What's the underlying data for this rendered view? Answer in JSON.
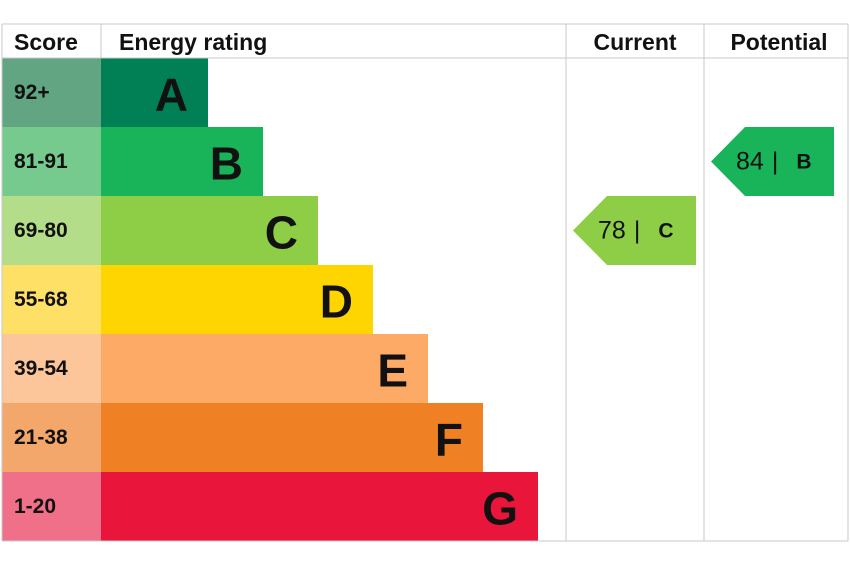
{
  "header": {
    "score": "Score",
    "energy_rating": "Energy rating",
    "current": "Current",
    "potential": "Potential"
  },
  "bands": [
    {
      "score": "92+",
      "rating": "A",
      "color": "#008054",
      "score_color": "#62a583"
    },
    {
      "score": "81-91",
      "rating": "B",
      "color": "#19b459",
      "score_color": "#76ca8e"
    },
    {
      "score": "69-80",
      "rating": "C",
      "color": "#8dce46",
      "score_color": "#b3dd88"
    },
    {
      "score": "55-68",
      "rating": "D",
      "color": "#ffd500",
      "score_color": "#ffe066"
    },
    {
      "score": "39-54",
      "rating": "E",
      "color": "#fcaa65",
      "score_color": "#fdc59a"
    },
    {
      "score": "21-38",
      "rating": "F",
      "color": "#ef8023",
      "score_color": "#f4a76a"
    },
    {
      "score": "1-20",
      "rating": "G",
      "color": "#e9153b",
      "score_color": "#f07089"
    }
  ],
  "current": {
    "score": "78",
    "separator": "|",
    "rating": "C",
    "color": "#8dce46"
  },
  "potential": {
    "score": "84",
    "separator": "|",
    "rating": "B",
    "color": "#19b459"
  }
}
